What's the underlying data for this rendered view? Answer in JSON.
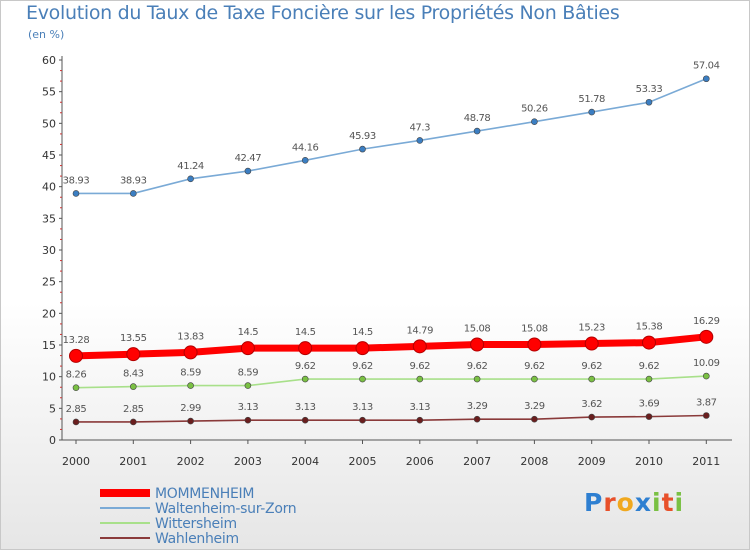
{
  "title": "Evolution du Taux de Taxe Foncière sur les Propriétés Non Bâties",
  "unit": "(en %)",
  "logo": {
    "letters": [
      "P",
      "r",
      "o",
      "x",
      "i",
      "t",
      "i"
    ],
    "colors": [
      "#2e7fd1",
      "#e8502a",
      "#f0a81e",
      "#2e7fd1",
      "#7ac043",
      "#e8502a",
      "#7ac043"
    ]
  },
  "chart_data": {
    "type": "line",
    "title": "Evolution du Taux de Taxe Foncière sur les Propriétés Non Bâties",
    "ylabel": "(en %)",
    "xlabel": "",
    "ylim": [
      0,
      60
    ],
    "yticks": [
      0,
      5,
      10,
      15,
      20,
      25,
      30,
      35,
      40,
      45,
      50,
      55,
      60
    ],
    "categories": [
      "2000",
      "2001",
      "2002",
      "2003",
      "2004",
      "2005",
      "2006",
      "2007",
      "2008",
      "2009",
      "2010",
      "2011"
    ],
    "legend_position": "bottom-left",
    "series": [
      {
        "name": "MOMMENHEIM",
        "color": "#ff0000",
        "bold": true,
        "values": [
          13.28,
          13.55,
          13.83,
          14.5,
          14.5,
          14.5,
          14.79,
          15.08,
          15.08,
          15.23,
          15.38,
          16.29
        ],
        "labels": [
          "13.28",
          "13.55",
          "13.83",
          "14.5",
          "14.5",
          "14.5",
          "14.79",
          "15.08",
          "15.08",
          "15.23",
          "15.38",
          "16.29"
        ]
      },
      {
        "name": "Waltenheim-sur-Zorn",
        "color": "#7aaad6",
        "marker": "#3b7ec2",
        "values": [
          38.93,
          38.93,
          41.24,
          42.47,
          44.16,
          45.93,
          47.3,
          48.78,
          50.26,
          51.78,
          53.33,
          57.04
        ],
        "labels": [
          "38.93",
          "38.93",
          "41.24",
          "42.47",
          "44.16",
          "45.93",
          "47.3",
          "48.78",
          "50.26",
          "51.78",
          "53.33",
          "57.04"
        ]
      },
      {
        "name": "Wittersheim",
        "color": "#a8e08a",
        "marker": "#7ac043",
        "values": [
          8.26,
          8.43,
          8.59,
          8.59,
          9.62,
          9.62,
          9.62,
          9.62,
          9.62,
          9.62,
          9.62,
          10.09
        ],
        "labels": [
          "8.26",
          "8.43",
          "8.59",
          "8.59",
          "9.62",
          "9.62",
          "9.62",
          "9.62",
          "9.62",
          "9.62",
          "9.62",
          "10.09"
        ]
      },
      {
        "name": "Wahlenheim",
        "color": "#8a3a3a",
        "marker": "#6a1e1e",
        "values": [
          2.85,
          2.85,
          2.99,
          3.13,
          3.13,
          3.13,
          3.13,
          3.29,
          3.29,
          3.62,
          3.69,
          3.87
        ],
        "labels": [
          "2.85",
          "2.85",
          "2.99",
          "3.13",
          "3.13",
          "3.13",
          "3.13",
          "3.29",
          "3.29",
          "3.62",
          "3.69",
          "3.87"
        ]
      }
    ]
  }
}
